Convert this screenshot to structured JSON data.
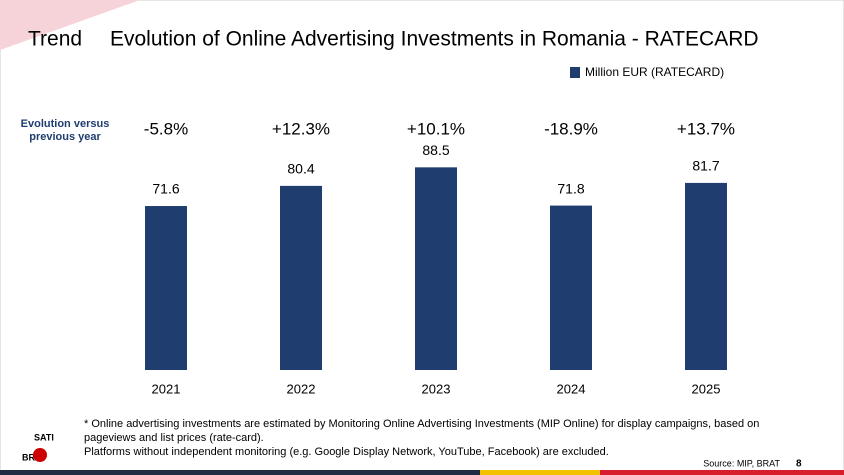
{
  "chart_data": {
    "type": "bar",
    "header": "Trend",
    "title": "Evolution of Online Advertising Investments in Romania - RATECARD",
    "categories": [
      "2021",
      "2022",
      "2023",
      "2024",
      "2025"
    ],
    "series": [
      {
        "name": "Million EUR (RATECARD)",
        "color": "#1f3d6e",
        "values": [
          71.6,
          80.4,
          88.5,
          71.8,
          81.7
        ]
      }
    ],
    "ylim": [
      0,
      100
    ],
    "evolution": {
      "label": "Evolution versus previous year",
      "values": [
        -5.8,
        12.3,
        10.1,
        -18.9,
        13.7
      ],
      "value_labels": [
        "-5.8%",
        "+12.3%",
        "+10.1%",
        "-18.9%",
        "+13.7%"
      ],
      "positive_color": "#21a24a",
      "negative_color": "#e0201c"
    },
    "footnote": [
      "* Online advertising investments are estimated by Monitoring Online Advertising Investments (MIP Online) for display campaigns, based on",
      "pageviews and list prices (rate-card).",
      "Platforms without independent monitoring (e.g. Google Display Network, YouTube, Facebook) are excluded."
    ],
    "source": "Source:  MIP,  BRAT",
    "page": "8",
    "logo": [
      "SATI",
      "BRAT"
    ]
  }
}
